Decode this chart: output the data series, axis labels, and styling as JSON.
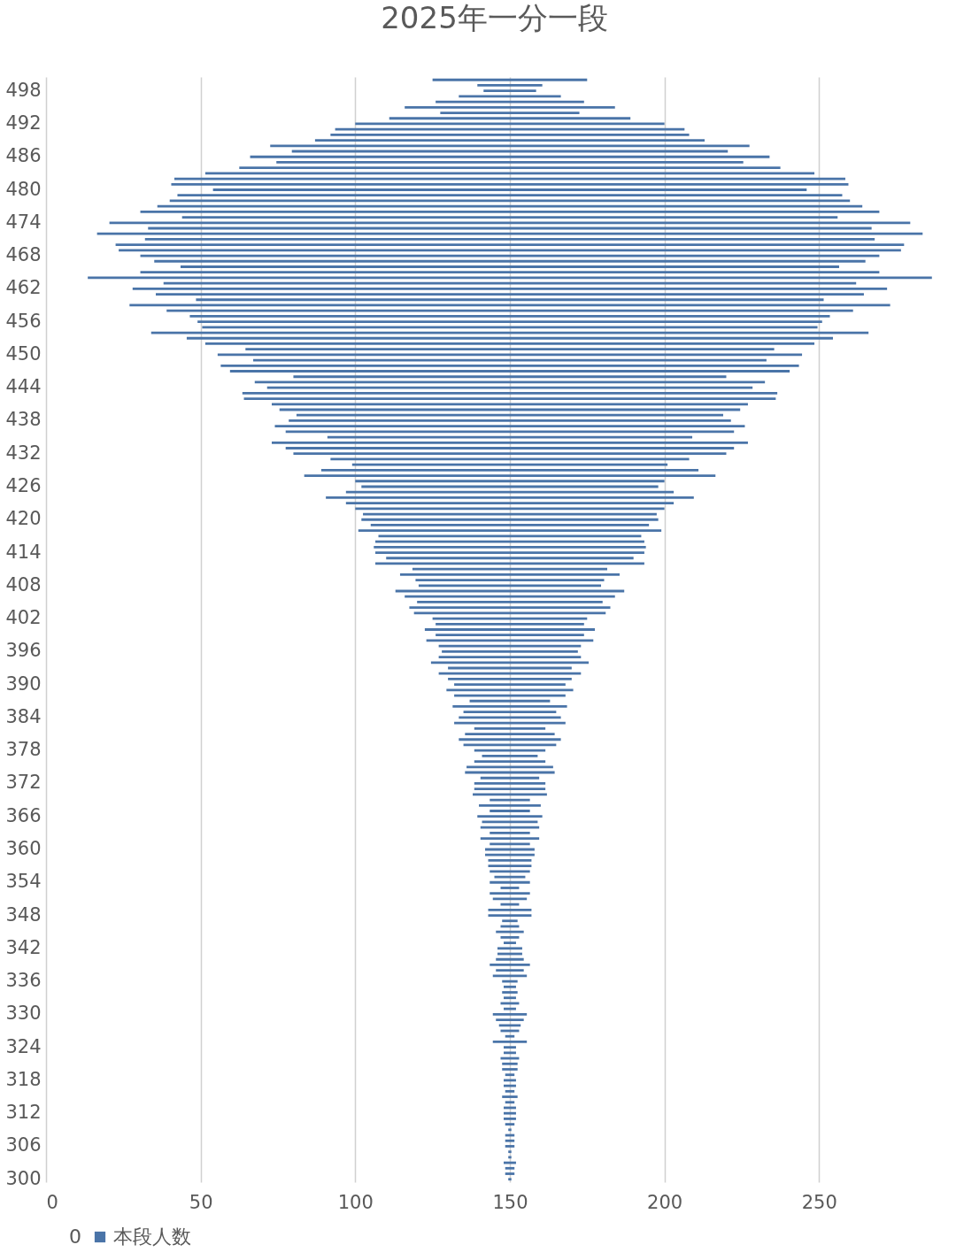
{
  "chart_data": {
    "type": "bar",
    "title": "2025年一分一段",
    "orientation": "horizontal",
    "grid": "x",
    "legend": "bottom",
    "xlim": [
      0,
      290
    ],
    "xticks": [
      0,
      50,
      100,
      150,
      200,
      250
    ],
    "categories": [
      null,
      null,
      "498",
      null,
      null,
      null,
      null,
      null,
      "492",
      null,
      null,
      null,
      null,
      null,
      "486",
      null,
      null,
      null,
      null,
      null,
      "480",
      null,
      null,
      null,
      null,
      null,
      "474",
      null,
      null,
      null,
      null,
      null,
      "468",
      null,
      null,
      null,
      null,
      null,
      "462",
      null,
      null,
      null,
      null,
      null,
      "456",
      null,
      null,
      null,
      null,
      null,
      "450",
      null,
      null,
      null,
      null,
      null,
      "444",
      null,
      null,
      null,
      null,
      null,
      "438",
      null,
      null,
      null,
      null,
      null,
      "432",
      null,
      null,
      null,
      null,
      null,
      "426",
      null,
      null,
      null,
      null,
      null,
      "420",
      null,
      null,
      null,
      null,
      null,
      "414",
      null,
      null,
      null,
      null,
      null,
      "408",
      null,
      null,
      null,
      null,
      null,
      "402",
      null,
      null,
      null,
      null,
      null,
      "396",
      null,
      null,
      null,
      null,
      null,
      "390",
      null,
      null,
      null,
      null,
      null,
      "384",
      null,
      null,
      null,
      null,
      null,
      "378",
      null,
      null,
      null,
      null,
      null,
      "372",
      null,
      null,
      null,
      null,
      null,
      "366",
      null,
      null,
      null,
      null,
      null,
      "360",
      null,
      null,
      null,
      null,
      null,
      "354",
      null,
      null,
      null,
      null,
      null,
      "348",
      null,
      null,
      null,
      null,
      null,
      "342",
      null,
      null,
      null,
      null,
      null,
      "336",
      null,
      null,
      null,
      null,
      null,
      "330",
      null,
      null,
      null,
      null,
      null,
      "324",
      null,
      null,
      null,
      null,
      null,
      "318",
      null,
      null,
      null,
      null,
      null,
      "312",
      null,
      null,
      null,
      null,
      null,
      "306",
      null,
      null,
      null,
      null,
      null,
      "300"
    ],
    "series": [
      {
        "name": "0",
        "values": [
          null,
          null,
          null,
          null,
          null,
          null,
          null,
          null,
          null,
          null,
          null,
          null,
          null,
          null,
          null,
          null,
          null,
          null,
          null,
          null,
          null,
          null,
          null,
          null,
          null,
          null,
          null,
          null,
          null,
          null,
          null,
          null,
          null,
          null,
          null,
          null,
          null,
          null,
          null,
          null,
          null,
          null,
          null,
          null,
          null,
          null,
          null,
          null,
          null,
          null,
          null,
          null,
          null,
          null,
          null,
          null,
          null,
          null,
          null,
          null,
          null,
          null,
          null,
          null,
          null,
          null,
          null,
          null,
          null,
          null,
          null,
          null,
          null,
          null,
          null,
          null,
          null,
          null,
          null,
          null,
          null,
          null,
          null,
          null,
          null,
          null,
          null,
          null,
          null,
          null,
          null,
          null,
          null,
          null,
          null,
          null,
          null,
          null,
          null,
          null,
          null,
          null,
          null,
          null,
          null,
          null,
          null,
          null,
          null,
          null,
          null,
          null,
          null,
          null,
          null,
          null,
          null,
          null,
          null,
          null,
          null,
          null,
          null,
          null,
          null,
          null,
          null,
          null,
          null,
          null,
          null,
          null,
          null,
          null,
          null,
          null,
          null,
          null,
          null,
          null,
          null,
          null,
          null,
          null,
          null,
          null,
          null,
          null,
          null,
          null,
          null,
          null,
          null,
          null,
          null,
          null,
          null,
          null,
          null,
          null,
          null,
          null,
          null,
          null,
          null,
          null,
          null,
          null,
          null,
          null,
          null,
          null,
          null,
          null,
          null,
          null,
          null,
          null,
          null,
          null,
          null,
          null,
          null,
          null,
          null,
          null,
          null,
          null,
          null,
          null,
          null,
          null,
          null,
          null,
          null,
          null,
          null,
          null,
          null,
          null,
          null
        ]
      },
      {
        "name": "本段人数",
        "color": "#4a74a8",
        "base": [
          125,
          139.5,
          141.5,
          133.5,
          126,
          116,
          127.5,
          111,
          100,
          93.5,
          92,
          87,
          72.5,
          79.5,
          66,
          74.5,
          62.5,
          51.5,
          41.5,
          40.5,
          54,
          42.5,
          40,
          36,
          30.5,
          44,
          20.5,
          33,
          16.5,
          32,
          22.5,
          23.5,
          30.5,
          35,
          43.5,
          30.5,
          13.5,
          38,
          28,
          35.5,
          48.5,
          27,
          39,
          46.5,
          49,
          50.5,
          34,
          45.5,
          51.5,
          64.5,
          55.5,
          67,
          56.5,
          59.5,
          80,
          67.5,
          71.5,
          63.5,
          64,
          73,
          75.5,
          81,
          78.5,
          74,
          77.5,
          91,
          73,
          77.5,
          80,
          92,
          99,
          89,
          83.5,
          100,
          102,
          97,
          90.5,
          97,
          100,
          102.5,
          102,
          105,
          101,
          107.5,
          106.5,
          106,
          106.5,
          110,
          106.5,
          118.5,
          114.5,
          119.5,
          120.5,
          113,
          116,
          120,
          117.5,
          119,
          125,
          126,
          122.5,
          126,
          123,
          127,
          128,
          127,
          124.5,
          130,
          127,
          130,
          132,
          129.5,
          132,
          137,
          131.5,
          135,
          133.5,
          132,
          138.5,
          135.5,
          133.5,
          135,
          138.5,
          141,
          138.5,
          136,
          135.5,
          140.5,
          138.5,
          138.5,
          138,
          143.5,
          140,
          143.5,
          139.5,
          141,
          140.5,
          143.5,
          140.5,
          143.5,
          142,
          142,
          143,
          143,
          143.5,
          145,
          143.5,
          147,
          143.5,
          144.5,
          147,
          143,
          143,
          147.5,
          147,
          145.5,
          147,
          148,
          146,
          146,
          145.5,
          143.5,
          145.5,
          144.5,
          147.5,
          148,
          147.5,
          148,
          147,
          148,
          144.5,
          145.5,
          146.5,
          147,
          148.5,
          144.5,
          148,
          148,
          147,
          147.5,
          147.5,
          148.5,
          148,
          148,
          148.5,
          147.5,
          148.5,
          148,
          148,
          148,
          148.5,
          149.5,
          148.5,
          148.5,
          148.5,
          149.5,
          149.5,
          148,
          148.5,
          148.5,
          149.5
        ],
        "values": [
          50,
          21,
          17,
          33,
          48,
          68,
          45,
          78,
          100,
          113,
          116,
          126,
          155,
          141,
          168,
          151,
          175,
          197,
          217,
          219,
          192,
          215,
          220,
          228,
          239,
          212,
          259,
          234,
          267,
          236,
          255,
          253,
          239,
          230,
          213,
          239,
          273,
          224,
          244,
          229,
          203,
          246,
          222,
          207,
          202,
          199,
          232,
          209,
          197,
          171,
          189,
          166,
          187,
          181,
          140,
          165,
          157,
          173,
          172,
          154,
          149,
          138,
          143,
          152,
          145,
          118,
          154,
          145,
          140,
          116,
          102,
          122,
          133,
          100,
          96,
          106,
          119,
          106,
          100,
          95,
          96,
          90,
          98,
          85,
          87,
          88,
          87,
          80,
          87,
          63,
          71,
          61,
          59,
          74,
          68,
          60,
          65,
          62,
          50,
          48,
          55,
          48,
          54,
          46,
          44,
          46,
          51,
          40,
          46,
          40,
          36,
          41,
          36,
          26,
          37,
          30,
          33,
          36,
          23,
          29,
          33,
          30,
          23,
          18,
          23,
          28,
          29,
          19,
          23,
          23,
          24,
          13,
          20,
          13,
          21,
          18,
          19,
          13,
          19,
          13,
          16,
          16,
          14,
          14,
          13,
          10,
          13,
          6,
          13,
          11,
          6,
          14,
          14,
          5,
          6,
          9,
          6,
          4,
          8,
          8,
          9,
          13,
          9,
          11,
          5,
          4,
          5,
          4,
          6,
          4,
          11,
          9,
          7,
          6,
          3,
          11,
          4,
          4,
          6,
          5,
          5,
          3,
          4,
          4,
          3,
          5,
          3,
          4,
          4,
          4,
          3,
          1,
          3,
          3,
          3,
          1,
          1,
          4,
          3,
          3,
          1
        ]
      }
    ]
  }
}
